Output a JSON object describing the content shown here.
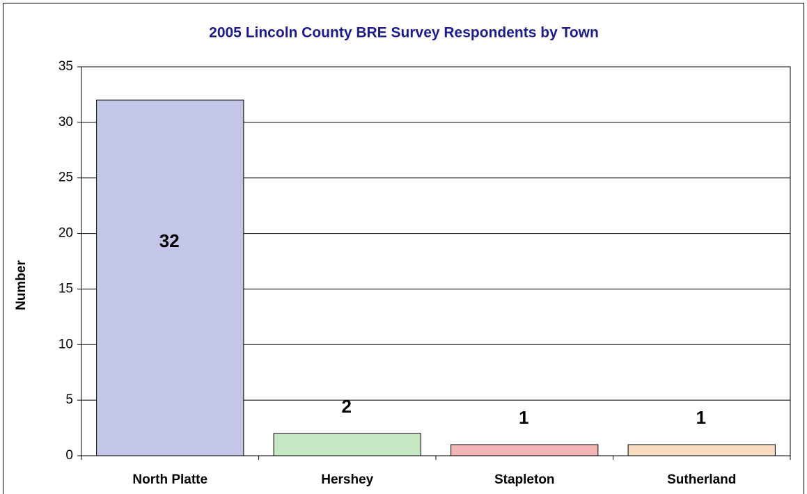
{
  "chart_data": {
    "type": "bar",
    "title": "2005 Lincoln County BRE Survey Respondents by Town",
    "y_label": "Number",
    "categories": [
      "North Platte",
      "Hershey",
      "Stapleton",
      "Sutherland"
    ],
    "values": [
      32,
      2,
      1,
      1
    ],
    "colors": [
      "#c3c6e6",
      "#c6e8c2",
      "#f3b6b6",
      "#f8dcc2"
    ],
    "ylim": [
      0,
      35
    ],
    "yticks": [
      0,
      5,
      10,
      15,
      20,
      25,
      30,
      35
    ],
    "grid": true
  }
}
